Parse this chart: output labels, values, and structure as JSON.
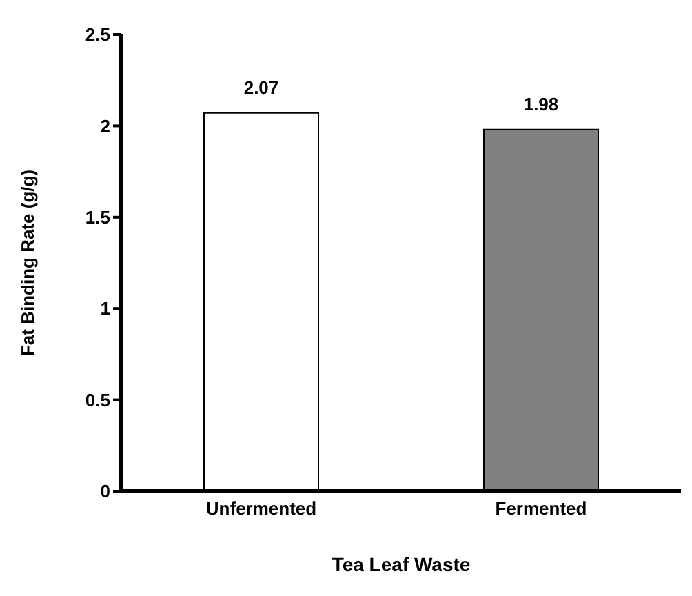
{
  "chart_data": {
    "type": "bar",
    "xlabel": "Tea Leaf Waste",
    "ylabel": "Fat Binding Rate (g/g)",
    "categories": [
      "Unfermented",
      "Fermented"
    ],
    "values": [
      2.07,
      1.98
    ],
    "colors": [
      "#ffffff",
      "#808080"
    ],
    "ylim": [
      0,
      2.5
    ],
    "yticks": [
      0,
      0.5,
      1,
      1.5,
      2,
      2.5
    ],
    "grid": false,
    "data_labels": true
  }
}
